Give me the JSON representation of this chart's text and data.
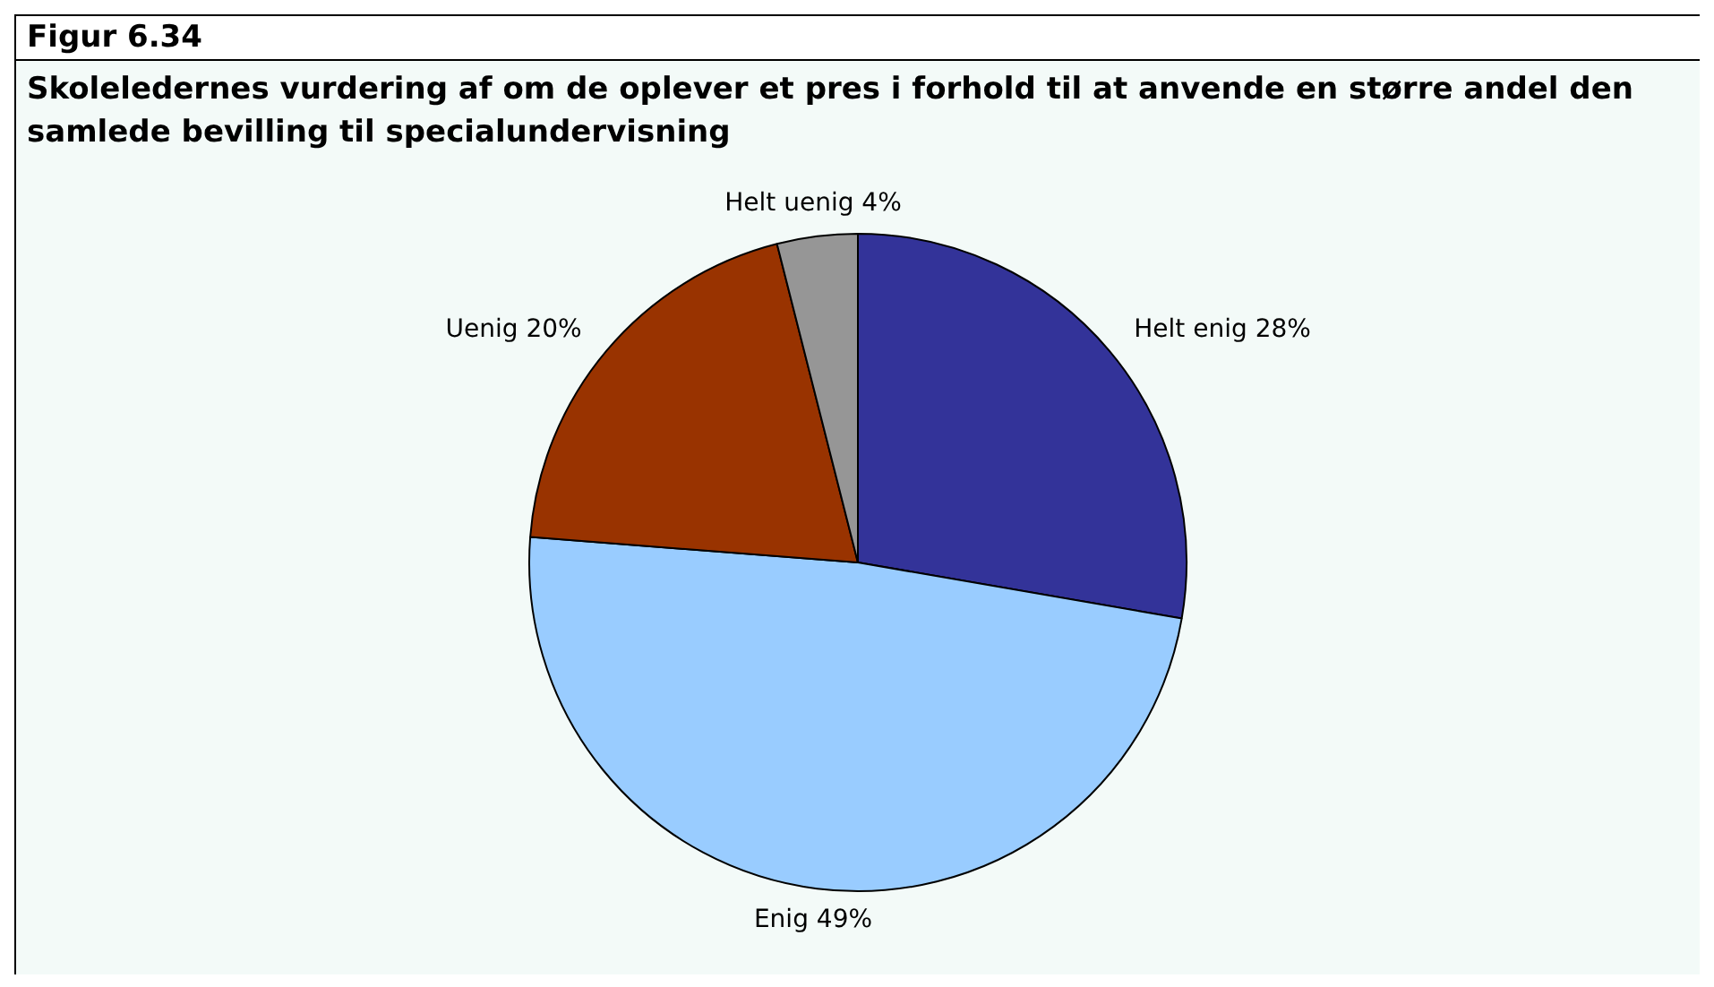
{
  "chart_data": {
    "type": "pie",
    "title": "Figur 6.34",
    "subtitle": "Skoleledernes vurdering af om de oplever et pres i forhold til at anvende en større andel den samlede bevilling til specialundervisning",
    "categories": [
      "Helt enig",
      "Enig",
      "Uenig",
      "Helt uenig"
    ],
    "values": [
      28,
      49,
      20,
      4
    ],
    "value_labels": [
      "28%",
      "49%",
      "20%",
      "4%"
    ],
    "colors": [
      "#333399",
      "#99ccff",
      "#993300",
      "#969696"
    ],
    "legend": false
  }
}
